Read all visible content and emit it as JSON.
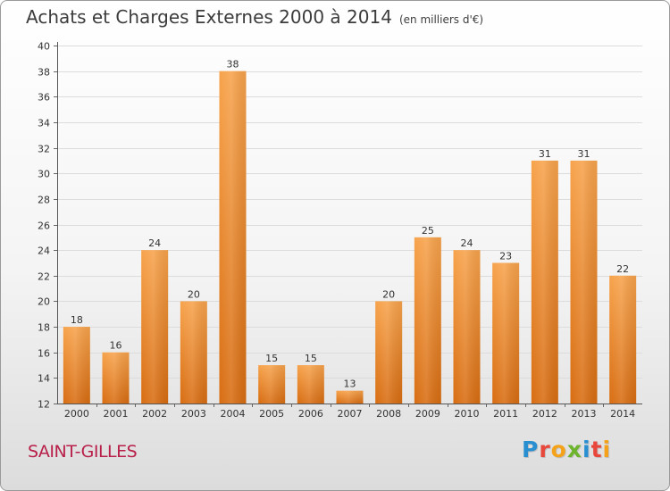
{
  "chart_data": {
    "type": "bar",
    "title": "Achats et Charges Externes 2000 à 2014",
    "subtitle": "(en milliers d'€)",
    "categories": [
      "2000",
      "2001",
      "2002",
      "2003",
      "2004",
      "2005",
      "2006",
      "2007",
      "2008",
      "2009",
      "2010",
      "2011",
      "2012",
      "2013",
      "2014"
    ],
    "values": [
      18,
      16,
      24,
      20,
      38,
      15,
      15,
      13,
      20,
      25,
      24,
      23,
      31,
      31,
      22
    ],
    "ylim": [
      12,
      40
    ],
    "yticks": [
      12,
      14,
      16,
      18,
      20,
      22,
      24,
      26,
      28,
      30,
      32,
      34,
      36,
      38,
      40
    ],
    "grid": true,
    "bar_color": "#f0922e",
    "xlabel": "",
    "ylabel": ""
  },
  "commune": "SAINT-GILLES",
  "logo": {
    "text": "Proxiti",
    "letters": [
      "P",
      "r",
      "o",
      "x",
      "i",
      "t",
      "i"
    ],
    "colors": [
      "#2a8fd0",
      "#e8483b",
      "#f5a21b",
      "#6bb42c",
      "#2a8fd0",
      "#e8483b",
      "#f5a21b"
    ]
  }
}
